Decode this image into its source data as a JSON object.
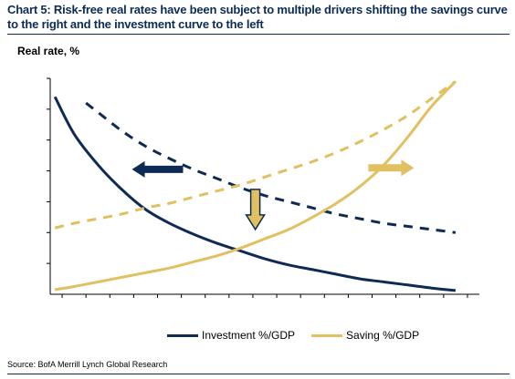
{
  "title": "Chart 5: Risk-free real rates have been subject to multiple drivers shifting the savings curve to the right and the investment curve to the left",
  "source": "Source: BofA Merrill Lynch Global Research",
  "colors": {
    "navy": "#0d2b55",
    "gold": "#e0c060",
    "title": "#0d2b55"
  },
  "chart_data": {
    "type": "line",
    "title": "Chart 5: Risk-free real rates have been subject to multiple drivers shifting the savings curve to the right and the investment curve to the left",
    "ylabel": "Real rate, %",
    "xlabel": "",
    "x_ticks_count": 18,
    "y_ticks_count": 7,
    "grid": false,
    "legend_position": "bottom",
    "legend": [
      {
        "label": "Investment %/GDP",
        "color": "#0d2b55"
      },
      {
        "label": "Saving %/GDP",
        "color": "#e0c060"
      }
    ],
    "series": [
      {
        "name": "Investment %/GDP",
        "color": "#0d2b55",
        "style": "solid",
        "x": [
          0.2,
          1,
          2,
          3,
          4,
          5,
          6,
          7,
          8,
          9,
          10,
          11,
          12,
          13,
          14,
          15,
          16,
          17
        ],
        "y": [
          6.4,
          5.2,
          4.2,
          3.4,
          2.75,
          2.3,
          1.95,
          1.65,
          1.4,
          1.15,
          0.95,
          0.8,
          0.65,
          0.5,
          0.4,
          0.3,
          0.2,
          0.12
        ]
      },
      {
        "name": "Investment (shifted)",
        "color": "#0d2b55",
        "style": "dashed",
        "x": [
          1.5,
          2,
          3,
          4,
          5,
          6,
          7,
          8,
          9,
          10,
          11,
          12,
          13,
          14,
          15,
          16,
          17
        ],
        "y": [
          6.2,
          5.9,
          5.3,
          4.8,
          4.4,
          4.05,
          3.75,
          3.45,
          3.2,
          3.0,
          2.8,
          2.6,
          2.45,
          2.3,
          2.2,
          2.1,
          2.0
        ]
      },
      {
        "name": "Saving %/GDP",
        "color": "#e0c060",
        "style": "solid",
        "x": [
          0.2,
          1,
          2,
          3,
          4,
          5,
          6,
          7,
          8,
          9,
          10,
          11,
          12,
          13,
          14,
          15,
          16,
          17
        ],
        "y": [
          0.15,
          0.25,
          0.4,
          0.55,
          0.7,
          0.85,
          1.05,
          1.25,
          1.5,
          1.8,
          2.1,
          2.5,
          2.95,
          3.5,
          4.2,
          5.1,
          6.1,
          6.9
        ]
      },
      {
        "name": "Saving (shifted)",
        "color": "#e0c060",
        "style": "dashed",
        "x": [
          0.2,
          1,
          2,
          3,
          4,
          5,
          6,
          7,
          8,
          9,
          10,
          11,
          12,
          13,
          14,
          15,
          16,
          17
        ],
        "y": [
          2.15,
          2.3,
          2.45,
          2.6,
          2.8,
          2.95,
          3.15,
          3.35,
          3.55,
          3.8,
          4.05,
          4.3,
          4.6,
          4.95,
          5.35,
          5.8,
          6.35,
          6.9
        ]
      }
    ],
    "arrows": [
      {
        "name": "investment-shift-left",
        "direction": "left",
        "color": "#0d2b55",
        "x": 4.5,
        "y": 4.05
      },
      {
        "name": "rate-decline-down",
        "direction": "down",
        "color": "#e0c060",
        "x": 8.6,
        "y": 2.75
      },
      {
        "name": "saving-shift-right",
        "direction": "right",
        "color": "#e0c060",
        "x": 14.3,
        "y": 4.1
      }
    ],
    "xlim": [
      0,
      18
    ],
    "ylim": [
      0,
      7
    ]
  }
}
